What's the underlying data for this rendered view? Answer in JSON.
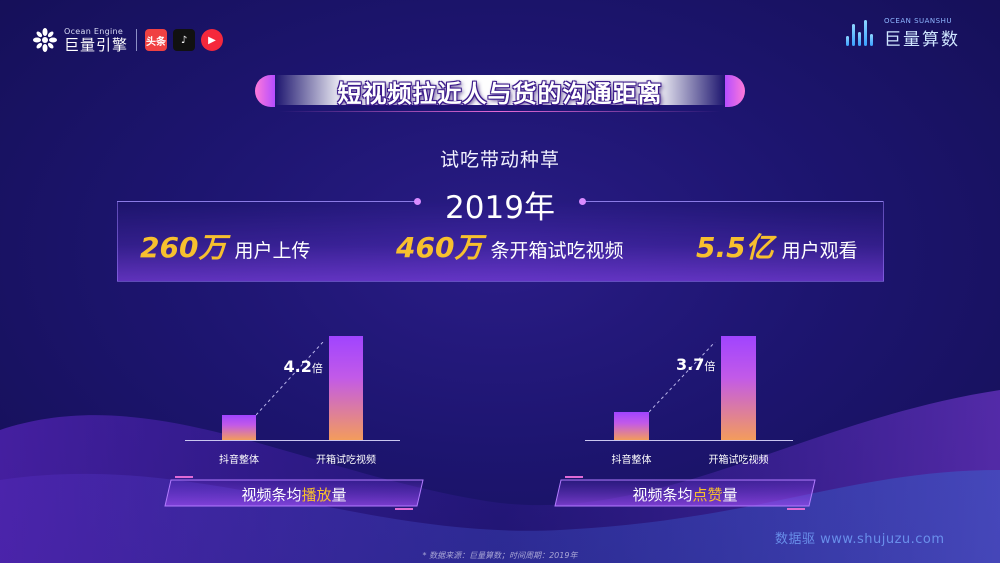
{
  "header": {
    "logo_en": "Ocean Engine",
    "logo_cn": "巨量引擎",
    "app_icons": [
      {
        "name": "toutiao-icon",
        "glyph": "头条"
      },
      {
        "name": "douyin-icon",
        "glyph": "♪"
      },
      {
        "name": "xigua-icon",
        "glyph": "▶"
      }
    ],
    "right_logo_en": "OCEAN SUANSHU",
    "right_logo_cn": "巨量算数"
  },
  "title": "短视频拉近人与货的沟通距离",
  "subtitle": "试吃带动种草",
  "year": "2019年",
  "stats": [
    {
      "value": "260万",
      "label": "用户上传"
    },
    {
      "value": "460万",
      "label": "条开箱试吃视频"
    },
    {
      "value": "5.5亿",
      "label": "用户观看"
    }
  ],
  "chart_data": [
    {
      "type": "bar",
      "categories": [
        "抖音整体",
        "开箱试吃视频"
      ],
      "values": [
        1,
        4.2
      ],
      "ratio_value": "4.2",
      "ratio_unit": "倍",
      "caption_pre": "视频条均",
      "caption_highlight": "播放",
      "caption_post": "量"
    },
    {
      "type": "bar",
      "categories": [
        "抖音整体",
        "开箱试吃视频"
      ],
      "values": [
        1,
        3.7
      ],
      "ratio_value": "3.7",
      "ratio_unit": "倍",
      "caption_pre": "视频条均",
      "caption_highlight": "点赞",
      "caption_post": "量"
    }
  ],
  "source": "* 数据来源：巨量算数；时间周期：2019年",
  "watermark": "数据驱 www.shujuzu.com",
  "colors": {
    "accent": "#f7c02e",
    "bar_top": "#a044ff",
    "bar_bottom": "#f39c5c",
    "background": "#1d1570"
  }
}
